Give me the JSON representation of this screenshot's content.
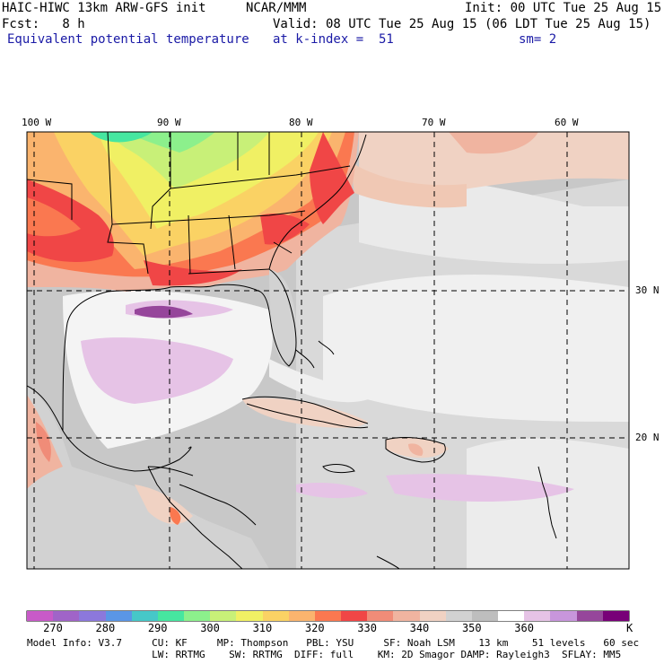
{
  "header": {
    "model_title": "HAIC-HIWC 13km ARW-GFS init",
    "org": "NCAR/MMM",
    "init": "Init: 00 UTC Tue 25 Aug 15",
    "fcst": "Fcst:   8 h",
    "valid": "Valid: 08 UTC Tue 25 Aug 15 (06 LDT Tue 25 Aug 15)",
    "field": "Equivalent potential temperature",
    "level": "at k-index =  51",
    "smoothing": "sm= 2"
  },
  "map": {
    "lon_labels": [
      "100 W",
      "90 W",
      "80 W",
      "70 W",
      "60 W"
    ],
    "lat_labels": [
      "30 N",
      "20 N"
    ],
    "region": "Gulf of Mexico / Caribbean / Western Atlantic"
  },
  "colorbar": {
    "ticks": [
      "270",
      "280",
      "290",
      "300",
      "310",
      "320",
      "330",
      "340",
      "350",
      "360"
    ],
    "unit": "K",
    "colors": [
      "#c85ac8",
      "#a064c8",
      "#8c78dc",
      "#5a96e6",
      "#46c8c8",
      "#46e6a0",
      "#8cf08c",
      "#c8f078",
      "#f0f064",
      "#fad264",
      "#fab46e",
      "#fa7850",
      "#f04646",
      "#f08c78",
      "#f0b4a0",
      "#f0d2c3",
      "#d2d2d2",
      "#bebebe",
      "#ffffff",
      "#e6c3e6",
      "#c896dc",
      "#96469b",
      "#780078"
    ]
  },
  "footer": {
    "line1": "Model Info: V3.7     CU: KF     MP: Thompson   PBL: YSU     SF: Noah LSM    13 km    51 levels   60 sec",
    "line2": "                     LW: RRTMG    SW: RRTMG  DIFF: full    KM: 2D Smagor DAMP: Rayleigh3  SFLAY: MM5"
  }
}
